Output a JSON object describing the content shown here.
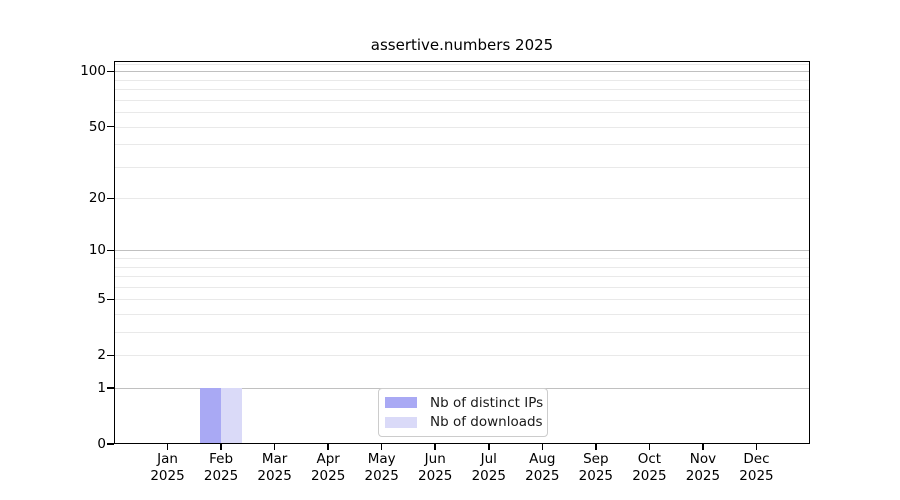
{
  "title": "assertive.numbers 2025",
  "chart_data": {
    "type": "bar",
    "title": "assertive.numbers 2025",
    "categories": [
      "Jan 2025",
      "Feb 2025",
      "Mar 2025",
      "Apr 2025",
      "May 2025",
      "Jun 2025",
      "Jul 2025",
      "Aug 2025",
      "Sep 2025",
      "Oct 2025",
      "Nov 2025",
      "Dec 2025"
    ],
    "series": [
      {
        "name": "Nb of distinct IPs",
        "color": "#a9a9f4",
        "values": [
          0,
          1,
          0,
          0,
          0,
          0,
          0,
          0,
          0,
          0,
          0,
          0
        ]
      },
      {
        "name": "Nb of downloads",
        "color": "#dadaf8",
        "values": [
          0,
          1,
          0,
          0,
          0,
          0,
          0,
          0,
          0,
          0,
          0,
          0
        ]
      }
    ],
    "xlabel": "",
    "ylabel": "",
    "yscale": "log1p",
    "ylim": [
      0,
      114
    ],
    "y_ticks": [
      0,
      1,
      2,
      5,
      10,
      20,
      50,
      100
    ],
    "y_major_gridlines": [
      1,
      10,
      100
    ],
    "y_minor_gridlines": [
      2,
      3,
      4,
      5,
      6,
      7,
      8,
      9,
      20,
      30,
      40,
      50,
      60,
      70,
      80,
      90,
      110
    ],
    "grid": true,
    "legend_position": "bottom-center-inside"
  }
}
